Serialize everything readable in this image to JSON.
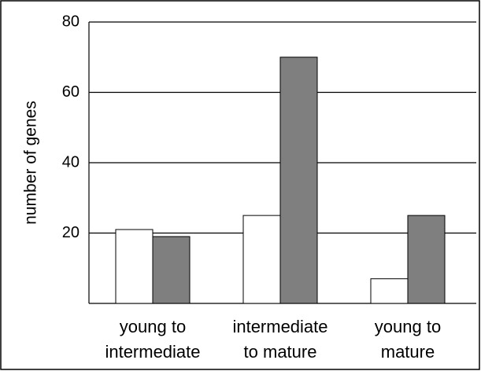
{
  "chart_data": {
    "type": "bar",
    "y_label": "number of genes",
    "categories": [
      "young to\nintermediate",
      "intermediate\nto mature",
      "young to\nmature"
    ],
    "series": [
      {
        "color": "#ffffff",
        "values": [
          21,
          25,
          7
        ]
      },
      {
        "color": "#7f7f7f",
        "values": [
          19,
          70,
          25
        ]
      }
    ],
    "ylim": [
      0,
      80
    ],
    "yticks": [
      20,
      40,
      60,
      80
    ],
    "grid": true
  }
}
